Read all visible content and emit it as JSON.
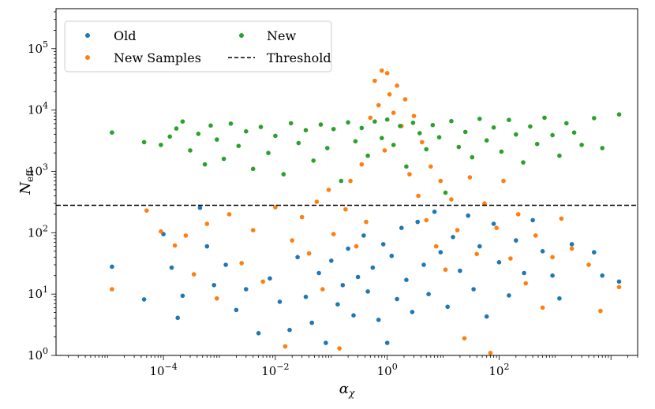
{
  "chart_data": {
    "type": "scatter",
    "xlabel": "α",
    "xlabel_sub": "χ",
    "ylabel": "N",
    "ylabel_sub": "eff",
    "xscale": "log",
    "yscale": "log",
    "xlim": [
      1.2e-06,
      30000.0
    ],
    "ylim": [
      1,
      450000.0
    ],
    "x_ticks": [
      {
        "value": 0.0001,
        "base": "10",
        "exp": "−4"
      },
      {
        "value": 0.01,
        "base": "10",
        "exp": "−2"
      },
      {
        "value": 1,
        "base": "10",
        "exp": "0"
      },
      {
        "value": 100,
        "base": "10",
        "exp": "2"
      }
    ],
    "y_ticks": [
      {
        "value": 1,
        "base": "10",
        "exp": "0"
      },
      {
        "value": 10,
        "base": "10",
        "exp": "1"
      },
      {
        "value": 100,
        "base": "10",
        "exp": "2"
      },
      {
        "value": 1000,
        "base": "10",
        "exp": "3"
      },
      {
        "value": 10000,
        "base": "10",
        "exp": "4"
      },
      {
        "value": 100000,
        "base": "10",
        "exp": "5"
      }
    ],
    "grid": false,
    "legend_position": "top-left",
    "legend": [
      {
        "label": "Old",
        "kind": "marker",
        "color": "#1f77b4"
      },
      {
        "label": "New",
        "kind": "marker",
        "color": "#2ca02c"
      },
      {
        "label": "New Samples",
        "kind": "marker",
        "color": "#ff7f0e"
      },
      {
        "label": "Threshold",
        "kind": "dashed-line",
        "color": "#000000"
      }
    ],
    "threshold": {
      "name": "Threshold",
      "y": 280,
      "style": "dashed",
      "color": "#000000"
    },
    "series": [
      {
        "name": "Old",
        "color": "#1f77b4",
        "points": [
          [
            1.2e-05,
            28
          ],
          [
            4.5e-05,
            8.2
          ],
          [
            0.0001,
            95
          ],
          [
            0.00014,
            27
          ],
          [
            0.00018,
            4.1
          ],
          [
            0.00022,
            9.4
          ],
          [
            0.00045,
            255
          ],
          [
            0.0006,
            60
          ],
          [
            0.0008,
            14
          ],
          [
            0.0013,
            30
          ],
          [
            0.002,
            5.5
          ],
          [
            0.003,
            12
          ],
          [
            0.005,
            2.3
          ],
          [
            0.008,
            18
          ],
          [
            0.012,
            7.5
          ],
          [
            0.018,
            2.6
          ],
          [
            0.025,
            40
          ],
          [
            0.035,
            9
          ],
          [
            0.045,
            3.4
          ],
          [
            0.06,
            22
          ],
          [
            0.08,
            1.6
          ],
          [
            0.1,
            35
          ],
          [
            0.13,
            6.8
          ],
          [
            0.16,
            14
          ],
          [
            0.2,
            55
          ],
          [
            0.25,
            4.5
          ],
          [
            0.3,
            19
          ],
          [
            0.38,
            90
          ],
          [
            0.45,
            11
          ],
          [
            0.55,
            27
          ],
          [
            0.7,
            3.8
          ],
          [
            0.85,
            65
          ],
          [
            1.0,
            1.6
          ],
          [
            1.2,
            42
          ],
          [
            1.5,
            8.3
          ],
          [
            1.8,
            120
          ],
          [
            2.2,
            17
          ],
          [
            2.8,
            5.1
          ],
          [
            3.5,
            150
          ],
          [
            4.5,
            30
          ],
          [
            5.5,
            10
          ],
          [
            7,
            220
          ],
          [
            9,
            48
          ],
          [
            12,
            6.2
          ],
          [
            15,
            85
          ],
          [
            20,
            24
          ],
          [
            28,
            190
          ],
          [
            35,
            12
          ],
          [
            45,
            60
          ],
          [
            60,
            4.3
          ],
          [
            80,
            140
          ],
          [
            100,
            33
          ],
          [
            150,
            9.5
          ],
          [
            200,
            75
          ],
          [
            280,
            22
          ],
          [
            400,
            160
          ],
          [
            600,
            50
          ],
          [
            900,
            20
          ],
          [
            1200.0,
            8.5
          ],
          [
            2000.0,
            65
          ],
          [
            5000.0,
            48
          ],
          [
            7000.0,
            20
          ],
          [
            14000.0,
            16
          ]
        ]
      },
      {
        "name": "New Samples",
        "color": "#ff7f0e",
        "points": [
          [
            1.2e-05,
            12
          ],
          [
            5e-05,
            230
          ],
          [
            9e-05,
            105
          ],
          [
            0.00016,
            62
          ],
          [
            0.00025,
            90
          ],
          [
            0.00035,
            21
          ],
          [
            0.0006,
            140
          ],
          [
            0.0009,
            8.5
          ],
          [
            0.0015,
            200
          ],
          [
            0.0025,
            32
          ],
          [
            0.004,
            110
          ],
          [
            0.006,
            16
          ],
          [
            0.01,
            260
          ],
          [
            0.015,
            1.4
          ],
          [
            0.02,
            75
          ],
          [
            0.03,
            180
          ],
          [
            0.04,
            46
          ],
          [
            0.055,
            320
          ],
          [
            0.07,
            12
          ],
          [
            0.09,
            500
          ],
          [
            0.11,
            95
          ],
          [
            0.14,
            1.3
          ],
          [
            0.18,
            240
          ],
          [
            0.22,
            700
          ],
          [
            0.28,
            60
          ],
          [
            0.35,
            1300
          ],
          [
            0.42,
            150
          ],
          [
            0.5,
            7500
          ],
          [
            0.6,
            30000
          ],
          [
            0.7,
            12000
          ],
          [
            0.8,
            44000
          ],
          [
            0.9,
            2200
          ],
          [
            1.0,
            40000
          ],
          [
            1.1,
            18000
          ],
          [
            1.3,
            9000
          ],
          [
            1.5,
            25000
          ],
          [
            1.8,
            5500
          ],
          [
            2.1,
            15000
          ],
          [
            2.5,
            900
          ],
          [
            3,
            8000
          ],
          [
            3.6,
            400
          ],
          [
            4.2,
            3000
          ],
          [
            5,
            160
          ],
          [
            6,
            1200
          ],
          [
            7.5,
            60
          ],
          [
            9,
            700
          ],
          [
            11,
            25
          ],
          [
            14,
            350
          ],
          [
            18,
            110
          ],
          [
            24,
            1.9
          ],
          [
            30,
            800
          ],
          [
            40,
            45
          ],
          [
            55,
            300
          ],
          [
            70,
            1.1
          ],
          [
            90,
            120
          ],
          [
            120,
            700
          ],
          [
            160,
            38
          ],
          [
            220,
            200
          ],
          [
            300,
            15
          ],
          [
            450,
            90
          ],
          [
            600,
            6
          ],
          [
            900,
            40
          ],
          [
            1300.0,
            170
          ],
          [
            2000.0,
            55
          ],
          [
            4000.0,
            30
          ],
          [
            6500.0,
            5.3
          ],
          [
            14000.0,
            13
          ]
        ]
      },
      {
        "name": "New",
        "color": "#2ca02c",
        "points": [
          [
            1.2e-05,
            4300
          ],
          [
            4.5e-05,
            3000
          ],
          [
            9e-05,
            2700
          ],
          [
            0.00013,
            3700
          ],
          [
            0.00017,
            5000
          ],
          [
            0.00022,
            6500
          ],
          [
            0.0003,
            2200
          ],
          [
            0.00042,
            4100
          ],
          [
            0.00055,
            1300
          ],
          [
            0.0007,
            5600
          ],
          [
            0.0009,
            3300
          ],
          [
            0.0012,
            1600
          ],
          [
            0.0016,
            6000
          ],
          [
            0.0022,
            2600
          ],
          [
            0.003,
            4500
          ],
          [
            0.004,
            1100
          ],
          [
            0.0055,
            5300
          ],
          [
            0.0075,
            2000
          ],
          [
            0.01,
            3800
          ],
          [
            0.014,
            900
          ],
          [
            0.019,
            6100
          ],
          [
            0.026,
            2900
          ],
          [
            0.035,
            4700
          ],
          [
            0.048,
            1500
          ],
          [
            0.065,
            5800
          ],
          [
            0.085,
            2400
          ],
          [
            0.11,
            4900
          ],
          [
            0.15,
            700
          ],
          [
            0.2,
            6300
          ],
          [
            0.27,
            3100
          ],
          [
            0.35,
            5100
          ],
          [
            0.45,
            1800
          ],
          [
            0.6,
            6500
          ],
          [
            0.8,
            3500
          ],
          [
            1.0,
            7000
          ],
          [
            1.3,
            2700
          ],
          [
            1.7,
            5500
          ],
          [
            2.2,
            1200
          ],
          [
            2.9,
            6200
          ],
          [
            3.8,
            4200
          ],
          [
            5,
            2300
          ],
          [
            6.5,
            5700
          ],
          [
            8.5,
            3600
          ],
          [
            11,
            450
          ],
          [
            14,
            6600
          ],
          [
            19,
            2500
          ],
          [
            25,
            4400
          ],
          [
            33,
            1700
          ],
          [
            45,
            7200
          ],
          [
            60,
            3200
          ],
          [
            80,
            5200
          ],
          [
            110,
            2100
          ],
          [
            150,
            6900
          ],
          [
            200,
            4000
          ],
          [
            270,
            1400
          ],
          [
            360,
            5400
          ],
          [
            480,
            2800
          ],
          [
            650,
            7500
          ],
          [
            900,
            3900
          ],
          [
            1200.0,
            1800
          ],
          [
            1600.0,
            6100
          ],
          [
            2200.0,
            4300
          ],
          [
            3000.0,
            2700
          ],
          [
            5000.0,
            7400
          ],
          [
            7000.0,
            2400
          ],
          [
            14000.0,
            8500
          ]
        ]
      }
    ]
  }
}
